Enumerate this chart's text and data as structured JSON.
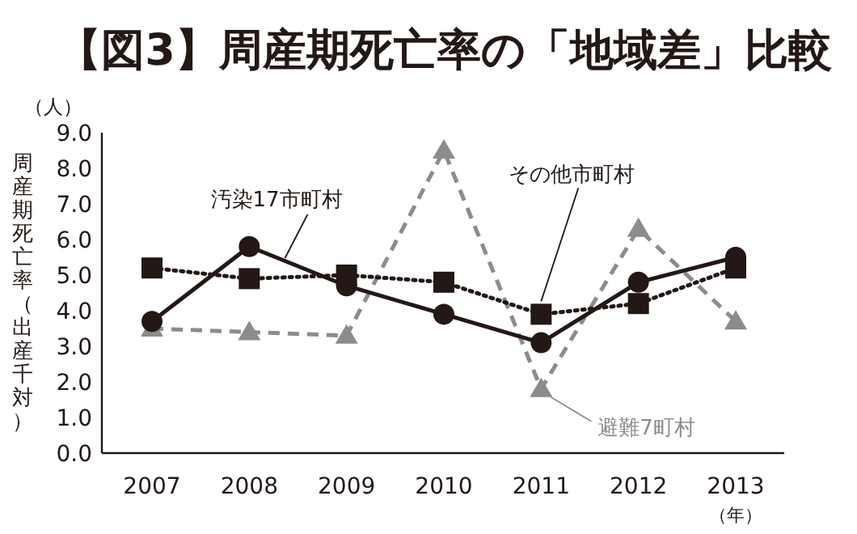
{
  "chart_data": {
    "type": "line",
    "title": "【図3】周産期死亡率の「地域差」比較",
    "ylabel": "周産期死亡率（出産千対）",
    "annotations": [
      "（人）",
      "（年）"
    ],
    "categories": [
      "2007",
      "2008",
      "2009",
      "2010",
      "2011",
      "2012",
      "2013"
    ],
    "ylim": [
      0,
      9
    ],
    "yticks": [
      {
        "value": 0,
        "label": "0.0"
      },
      {
        "value": 1,
        "label": "1.0"
      },
      {
        "value": 2,
        "label": "2.0"
      },
      {
        "value": 3,
        "label": "3.0"
      },
      {
        "value": 4,
        "label": "4.0"
      },
      {
        "value": 5,
        "label": "5.0"
      },
      {
        "value": 6,
        "label": "6.0"
      },
      {
        "value": 7,
        "label": "7.0"
      },
      {
        "value": 8,
        "label": "8.0"
      },
      {
        "value": 9,
        "label": "9.0"
      }
    ],
    "grid": false,
    "series": [
      {
        "name": "汚染17市町村",
        "color": "#231815",
        "marker": "circle",
        "line_style": "solid",
        "values": [
          3.7,
          5.8,
          4.7,
          3.9,
          3.1,
          4.8,
          5.5
        ]
      },
      {
        "name": "その他市町村",
        "color": "#231815",
        "marker": "square",
        "line_style": "dotted",
        "values": [
          5.2,
          4.9,
          5.0,
          4.8,
          3.9,
          4.2,
          5.2
        ]
      },
      {
        "name": "避難7町村",
        "color": "#8c8c8c",
        "marker": "triangle",
        "line_style": "dashed",
        "values": [
          3.5,
          3.4,
          3.3,
          8.5,
          1.8,
          6.3,
          3.7
        ]
      }
    ]
  }
}
